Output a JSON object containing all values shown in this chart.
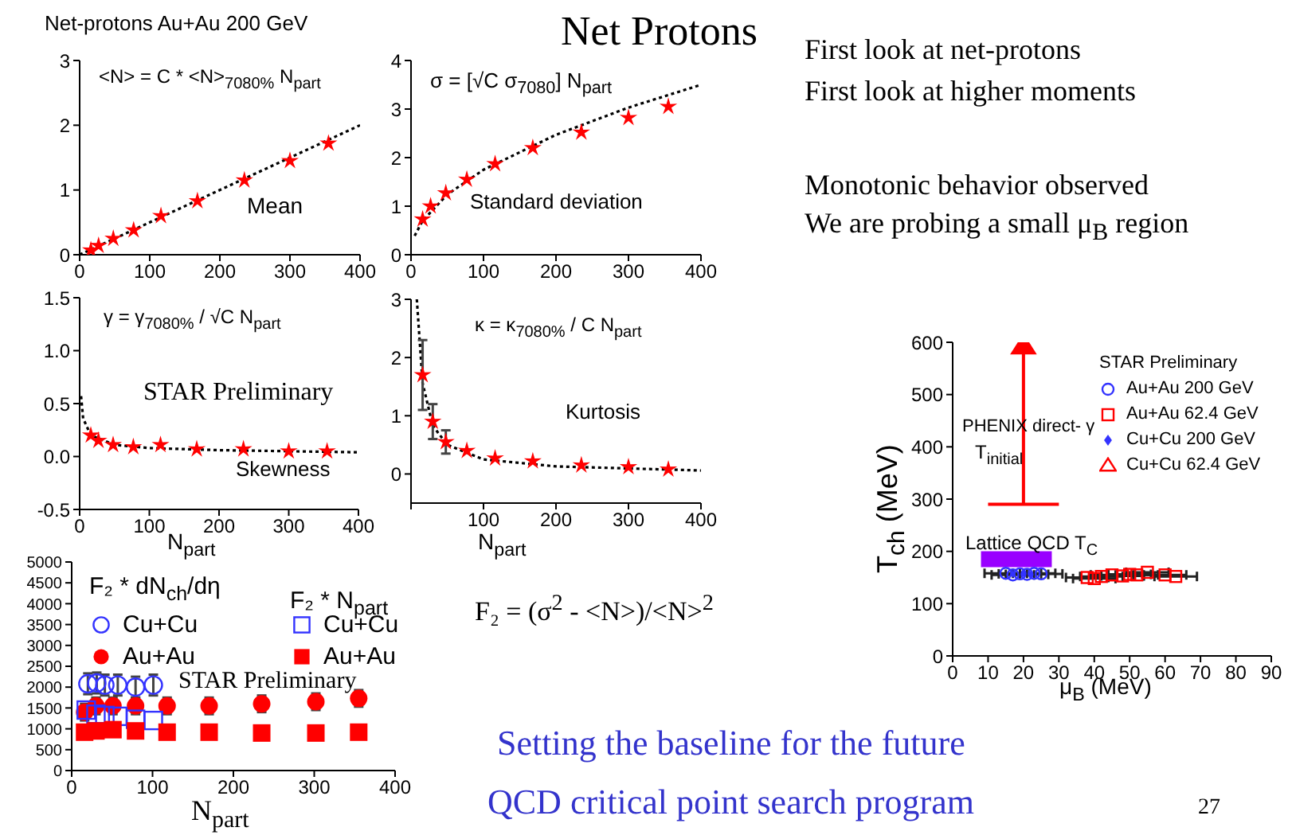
{
  "chart_data": [
    {
      "type": "scatter",
      "title": "Net-protons Au+Au 200 GeV",
      "xlim": [
        0,
        400
      ],
      "xticks": [
        0,
        100,
        200,
        300,
        400
      ],
      "ylim": [
        0,
        3
      ],
      "yticks": [
        0,
        1,
        2,
        3
      ],
      "annotations": [
        "<N> = C * <N>$_{7080%}$ N$_{part}$",
        "Mean"
      ],
      "series": [
        {
          "type": "line",
          "color": "#000000",
          "line_style": "dotted",
          "marker": "none",
          "x": [
            0,
            400
          ],
          "values": [
            0,
            2
          ]
        },
        {
          "color": "#ff0000",
          "marker": "star",
          "x": [
            16,
            27,
            48,
            77,
            116,
            168,
            235,
            300,
            355
          ],
          "values": [
            0.07,
            0.14,
            0.25,
            0.38,
            0.6,
            0.83,
            1.15,
            1.45,
            1.72
          ]
        }
      ]
    },
    {
      "type": "scatter",
      "xlim": [
        0,
        400
      ],
      "xticks": [
        0,
        100,
        200,
        300,
        400
      ],
      "ylim": [
        0,
        4
      ],
      "yticks": [
        0,
        1,
        2,
        3,
        4
      ],
      "annotations": [
        "σ = [√C σ$_{7080}$] N$_{part}$",
        "Standard deviation"
      ],
      "series": [
        {
          "type": "line",
          "color": "#000000",
          "line_style": "dotted",
          "marker": "none",
          "x": [
            5,
            16,
            50,
            100,
            200,
            300,
            400
          ],
          "values": [
            0.39,
            0.7,
            1.24,
            1.75,
            2.47,
            3.03,
            3.5
          ]
        },
        {
          "color": "#ff0000",
          "marker": "star",
          "x": [
            16,
            27,
            48,
            77,
            116,
            168,
            235,
            300,
            355
          ],
          "values": [
            0.73,
            1.0,
            1.27,
            1.55,
            1.87,
            2.2,
            2.52,
            2.82,
            3.05
          ]
        }
      ]
    },
    {
      "type": "scatter",
      "xlabel": "N$_{part}$",
      "xlim": [
        0,
        400
      ],
      "xticks": [
        0,
        100,
        200,
        300,
        400
      ],
      "ylim": [
        -0.5,
        1.5
      ],
      "yticks": [
        {
          "value": -0.5,
          "label": "-0.5"
        },
        {
          "value": 0,
          "label": "0.0"
        },
        {
          "value": 0.5,
          "label": "0.5"
        },
        {
          "value": 1,
          "label": "1.0"
        },
        {
          "value": 1.5,
          "label": "1.5"
        }
      ],
      "annotations": [
        "γ = γ$_{7080%}$ / √C N$_{part}$",
        "STAR Preliminary",
        "Skewness"
      ],
      "series": [
        {
          "type": "line",
          "color": "#000000",
          "line_style": "dotted",
          "marker": "none",
          "x": [
            2,
            5,
            16,
            50,
            100,
            200,
            400
          ],
          "values": [
            0.57,
            0.36,
            0.2,
            0.11,
            0.08,
            0.06,
            0.04
          ]
        },
        {
          "color": "#ff0000",
          "marker": "star",
          "x": [
            16,
            27,
            48,
            77,
            116,
            168,
            235,
            300,
            355
          ],
          "values": [
            0.2,
            0.15,
            0.11,
            0.09,
            0.11,
            0.07,
            0.07,
            0.05,
            0.05
          ]
        }
      ]
    },
    {
      "type": "scatter",
      "xlabel": "N$_{part}$",
      "xlim": [
        0,
        400
      ],
      "xticks": [
        {
          "value": 0,
          "label": null
        },
        100,
        200,
        300,
        400
      ],
      "ylim": [
        -0.5,
        3
      ],
      "yticks": [
        0,
        1,
        2,
        3
      ],
      "annotations": [
        "κ = κ$_{7080%}$ / C N$_{part}$",
        "Kurtosis"
      ],
      "series": [
        {
          "type": "line",
          "color": "#000000",
          "line_style": "dotted",
          "marker": "none",
          "x": [
            8,
            16,
            30,
            50,
            100,
            200,
            400
          ],
          "values": [
            3.0,
            1.56,
            0.83,
            0.5,
            0.25,
            0.13,
            0.06
          ]
        },
        {
          "color": "#ff0000",
          "marker": "star",
          "x": [
            16,
            30,
            48,
            77,
            116,
            168,
            235,
            300,
            355
          ],
          "values": [
            1.7,
            0.9,
            0.55,
            0.4,
            0.27,
            0.22,
            0.15,
            0.12,
            0.08
          ],
          "errors": [
            0.6,
            0.3,
            0.2,
            null,
            null,
            null,
            null,
            null,
            null
          ]
        }
      ]
    },
    {
      "type": "scatter",
      "xlabel": "N$_{part}$",
      "legend": "top left",
      "legend_title": "F₂ * dN$_{ch}$/dη",
      "xlim": [
        0,
        400
      ],
      "xticks": [
        0,
        100,
        200,
        300,
        400
      ],
      "ylim": [
        0,
        5000
      ],
      "yticks": [
        0,
        500,
        1000,
        1500,
        2000,
        2500,
        3000,
        3500,
        4000,
        4500,
        5000
      ],
      "annotations": [
        "F₂ * N$_{part}$",
        "STAR Preliminary"
      ],
      "series": [
        {
          "name": "Cu+Cu",
          "color": "#3333ff",
          "marker": "circle",
          "x": [
            20,
            31,
            41,
            57,
            79,
            101
          ],
          "values": [
            2080,
            2100,
            2050,
            2050,
            2000,
            2050
          ],
          "errors": [
            250,
            250,
            250,
            250,
            250,
            250
          ]
        },
        {
          "name": "Au+Au",
          "color": "#ff0000",
          "marker": "circle",
          "x": [
            16,
            30,
            51,
            79,
            118,
            170,
            235,
            302,
            355
          ],
          "values": [
            1400,
            1550,
            1550,
            1550,
            1550,
            1550,
            1600,
            1650,
            1730
          ],
          "errors": [
            200,
            200,
            200,
            200,
            200,
            200,
            200,
            200,
            200
          ]
        },
        {
          "name": "Cu+Cu",
          "color": "#3333ff",
          "marker": "square",
          "x": [
            18,
            30,
            41,
            57,
            79,
            101
          ],
          "values": [
            1450,
            1350,
            1320,
            1300,
            1230,
            1200
          ]
        },
        {
          "name": "Au+Au",
          "color": "#ff0000",
          "marker": "square",
          "x": [
            16,
            30,
            51,
            79,
            118,
            170,
            235,
            302,
            355
          ],
          "values": [
            920,
            950,
            980,
            950,
            920,
            920,
            900,
            900,
            920
          ]
        }
      ]
    },
    {
      "type": "scatter",
      "xlabel": "μ$_{B}$ (MeV)",
      "ylabel": "T$_{ch}$ (MeV)",
      "legend": "top right",
      "legend_title": "STAR Preliminary",
      "xlim": [
        0,
        90
      ],
      "xticks": [
        0,
        10,
        20,
        30,
        40,
        50,
        60,
        70,
        80,
        90
      ],
      "ylim": [
        0,
        600
      ],
      "yticks": [
        0,
        100,
        200,
        300,
        400,
        500,
        600
      ],
      "annotations": [
        "PHENIX direct- γ",
        "T$_{initial}$",
        "Lattice QCD T$_{C}$"
      ],
      "series": [
        {
          "type": "line",
          "color": "#ff0000",
          "marker": "triangle",
          "x": [
            20,
            20
          ],
          "values": [
            290,
            600
          ]
        },
        {
          "type": "line",
          "color": "#ff0000",
          "marker": "none",
          "x": [
            10,
            30
          ],
          "values": [
            290,
            290
          ]
        },
        {
          "type": "line",
          "color": "#9900ff",
          "marker": "none",
          "x": [
            8,
            28
          ],
          "values": [
            185,
            185
          ]
        },
        {
          "name": "Au+Au 200 GeV",
          "color": "#3333ff",
          "marker": "circle",
          "x": [
            15,
            17,
            19,
            21,
            23,
            25
          ],
          "values": [
            158,
            155,
            157,
            156,
            158,
            157
          ],
          "xerrors": [
            6,
            6,
            6,
            6,
            6,
            6
          ]
        },
        {
          "name": "Au+Au 62.4 GeV",
          "color": "#ff0000",
          "marker": "square",
          "x": [
            38,
            40,
            42,
            45,
            48,
            50,
            52,
            55,
            60,
            63
          ],
          "values": [
            150,
            148,
            152,
            155,
            153,
            156,
            155,
            160,
            155,
            152
          ],
          "xerrors": [
            6,
            6,
            6,
            6,
            6,
            6,
            6,
            6,
            6,
            6
          ]
        },
        {
          "name": "Cu+Cu 200 GeV",
          "color": "#3333ff",
          "marker": "diamond",
          "x": [
            17,
            20,
            22
          ],
          "values": [
            157,
            158,
            155
          ]
        },
        {
          "name": "Cu+Cu 62.4 GeV",
          "color": "#ff0000",
          "marker": "triangle"
        }
      ]
    },
    {
      "type": "other",
      "title": "Net Protons",
      "annotations": [
        "First look at net-protons",
        "First look at higher moments",
        "Monotonic behavior observed",
        "We are probing a small μ$_{B}$ region",
        "F₂ = (σ$^{2}$ - <N>)/<N>$^{2}$",
        "Setting the baseline for the future",
        "QCD critical point search program",
        "27"
      ]
    }
  ]
}
